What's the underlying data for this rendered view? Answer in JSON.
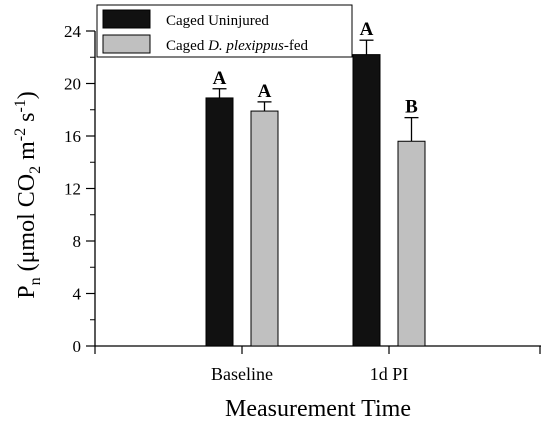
{
  "chart_data": {
    "type": "bar",
    "categories": [
      "Baseline",
      "1d PI"
    ],
    "series": [
      {
        "name": "Caged Uninjured",
        "color": "#111111",
        "values": [
          18.9,
          22.2
        ],
        "errors": [
          0.7,
          1.1
        ],
        "sig": [
          "A",
          "A"
        ]
      },
      {
        "name_parts": [
          {
            "text": "Caged ",
            "italic": false
          },
          {
            "text": "D. plexippus",
            "italic": true
          },
          {
            "text": "-fed",
            "italic": false
          }
        ],
        "color": "#c0c0c0",
        "values": [
          17.9,
          15.6
        ],
        "errors": [
          0.7,
          1.8
        ],
        "sig": [
          "A",
          "B"
        ]
      }
    ],
    "xlabel": "Measurement Time",
    "ylabel": {
      "base": "P",
      "base_sub": "n",
      "open": " (μmol CO",
      "co2_sub": "2",
      "m": " m",
      "m_sup": "-2",
      "s": " s",
      "s_sup": "-1",
      "close": ")"
    },
    "ylim": [
      0,
      24
    ],
    "yticks": [
      "0",
      "4",
      "8",
      "12",
      "16",
      "20",
      "24"
    ],
    "legend_position": "top-left",
    "grid": false,
    "colors": {
      "axis": "#000000",
      "bar_stroke": "#000000"
    }
  }
}
